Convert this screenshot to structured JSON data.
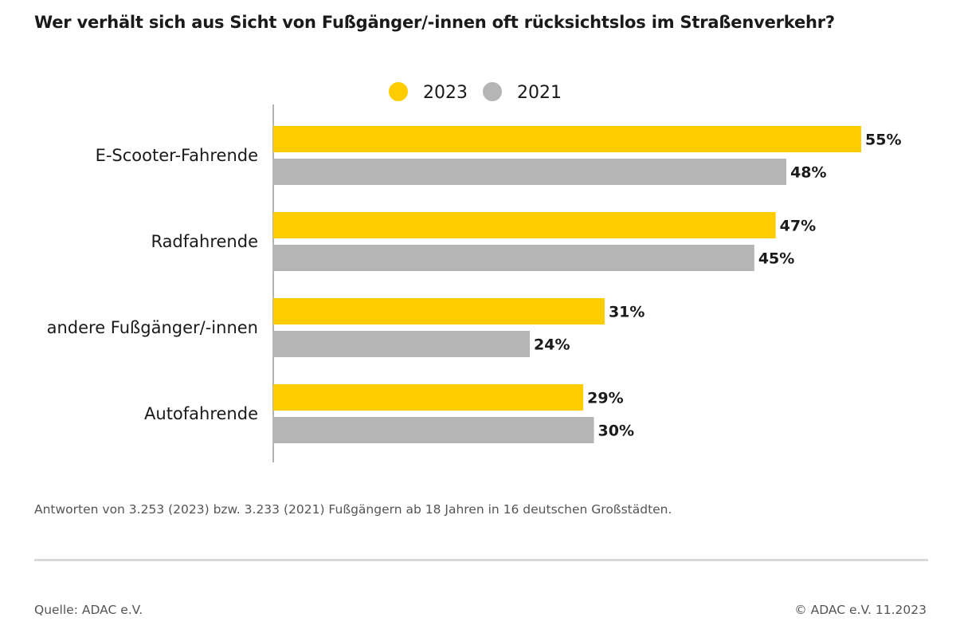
{
  "title": "Wer verhält sich aus Sicht von Fußgänger/-innen oft rücksichtslos im Straßenverkehr?",
  "footnote": "Antworten von 3.253 (2023) bzw. 3.233 (2021) Fußgängern ab 18 Jahren in 16 deutschen Großstädten.",
  "source": "Quelle: ADAC e.V.",
  "copyright": "© ADAC e.V. 11.2023",
  "chart_data": {
    "type": "bar",
    "orientation": "horizontal",
    "title": "Wer verhält sich aus Sicht von Fußgänger/-innen oft rücksichtslos im Straßenverkehr?",
    "xlabel": "",
    "ylabel": "",
    "unit": "%",
    "xlim": [
      0,
      55
    ],
    "legend_position": "top-center",
    "grid": false,
    "categories": [
      "E-Scooter-Fahrende",
      "Radfahrende",
      "andere Fußgänger/-innen",
      "Autofahrende"
    ],
    "series": [
      {
        "name": "2023",
        "color": "#FFCC00",
        "values": [
          55,
          47,
          31,
          29
        ]
      },
      {
        "name": "2021",
        "color": "#B5B5B5",
        "values": [
          48,
          45,
          24,
          30
        ]
      }
    ]
  }
}
